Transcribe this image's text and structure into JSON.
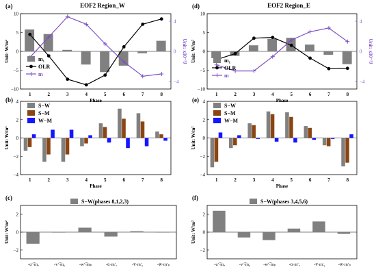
{
  "chart_data": [
    {
      "panel": "(a)",
      "type": "bar+line",
      "title": "EOF2 Region_W",
      "categories": [
        "1",
        "2",
        "3",
        "4",
        "5",
        "6",
        "7",
        "8"
      ],
      "xlabel": "Phase",
      "ylabel": "Unit: W/m²",
      "y2label": "Unit: x10⁻³J",
      "ylim": [
        -10,
        10
      ],
      "yticks": [
        10,
        5,
        0,
        -5,
        -10
      ],
      "y2lim": [
        -5,
        5
      ],
      "y2ticks": [
        4,
        0,
        -4
      ],
      "legend": [
        "m₁",
        "OLR",
        "m"
      ],
      "series": [
        {
          "name": "m₁",
          "kind": "bar",
          "color": "#808080",
          "values": [
            5.8,
            4.6,
            0.4,
            -3.5,
            -5.5,
            -3.8,
            -0.5,
            2.8
          ]
        },
        {
          "name": "OLR",
          "kind": "line",
          "color": "#000000",
          "marker": "circle",
          "values": [
            4.5,
            -1.2,
            -7.4,
            -8.9,
            -6.3,
            1.2,
            7.2,
            8.6
          ]
        },
        {
          "name": "m",
          "kind": "line",
          "color": "#7b4fc6",
          "marker": "plus",
          "axis": "right",
          "values": [
            -0.8,
            1.9,
            4.6,
            3.6,
            1.0,
            -1.4,
            -3.3,
            -3.0
          ]
        }
      ]
    },
    {
      "panel": "(d)",
      "type": "bar+line",
      "title": "EOF2 Region_E",
      "categories": [
        "1",
        "2",
        "3",
        "4",
        "5",
        "6",
        "7",
        "8"
      ],
      "xlabel": "Phase",
      "ylabel": "Unit: W/m²",
      "y2label": "Unit: x10⁻³J",
      "ylim": [
        -10,
        10
      ],
      "yticks": [
        10,
        5,
        0,
        -5,
        -10
      ],
      "y2lim": [
        -5,
        5
      ],
      "y2ticks": [
        4,
        0,
        -4
      ],
      "legend": [
        "m₁",
        "OLR",
        "m"
      ],
      "series": [
        {
          "name": "m₁",
          "kind": "bar",
          "color": "#808080",
          "values": [
            -1.8,
            -1.2,
            1.6,
            3.3,
            3.6,
            1.8,
            -0.9,
            -3.4
          ]
        },
        {
          "name": "OLR",
          "kind": "line",
          "color": "#000000",
          "marker": "circle",
          "values": [
            -2.2,
            -0.6,
            3.5,
            3.7,
            1.6,
            -1.8,
            -4.6,
            -4.5
          ]
        },
        {
          "name": "m",
          "kind": "line",
          "color": "#7b4fc6",
          "marker": "plus",
          "axis": "right",
          "values": [
            -1.8,
            -2.6,
            -2.6,
            -0.7,
            1.5,
            2.6,
            3.1,
            1.3
          ]
        }
      ]
    },
    {
      "panel": "(b)",
      "type": "bar",
      "categories": [
        "1",
        "2",
        "3",
        "4",
        "5",
        "6",
        "7",
        "8"
      ],
      "xlabel": "Phase",
      "ylabel": "Unit: W/m²",
      "ylim": [
        -4,
        4
      ],
      "yticks": [
        4,
        2,
        0,
        -2,
        -4
      ],
      "legend": [
        "S−W",
        "S−M",
        "W−M"
      ],
      "series": [
        {
          "name": "S−W",
          "color": "#808080",
          "values": [
            -1.4,
            -2.6,
            -2.6,
            -0.9,
            1.6,
            3.2,
            2.7,
            0.7
          ]
        },
        {
          "name": "S−M",
          "color": "#8b4513",
          "values": [
            -1.0,
            -1.8,
            -1.8,
            -0.6,
            1.2,
            2.1,
            1.8,
            0.4
          ]
        },
        {
          "name": "W−M",
          "color": "#1515ff",
          "values": [
            0.4,
            0.9,
            0.9,
            0.3,
            -0.5,
            -1.1,
            -0.9,
            -0.3
          ]
        }
      ]
    },
    {
      "panel": "(e)",
      "type": "bar",
      "categories": [
        "1",
        "2",
        "3",
        "4",
        "5",
        "6",
        "7",
        "8"
      ],
      "xlabel": "Phase",
      "ylabel": "Unit: W/m²",
      "ylim": [
        -4,
        4
      ],
      "yticks": [
        4,
        2,
        0,
        -2,
        -4
      ],
      "legend": [
        "S−W",
        "S−M",
        "W−M"
      ],
      "series": [
        {
          "name": "S−W",
          "color": "#808080",
          "values": [
            -3.2,
            -1.1,
            1.6,
            2.9,
            2.8,
            1.3,
            -0.8,
            -3.1
          ]
        },
        {
          "name": "S−M",
          "color": "#8b4513",
          "values": [
            -2.6,
            -0.8,
            1.4,
            2.6,
            2.3,
            1.1,
            -0.9,
            -2.7
          ]
        },
        {
          "name": "W−M",
          "color": "#1515ff",
          "values": [
            0.6,
            0.3,
            -0.1,
            -0.4,
            -0.5,
            -0.2,
            -0.1,
            0.4
          ]
        }
      ]
    },
    {
      "panel": "(c)",
      "type": "bar",
      "legend": [
        "S−W(phases 8,1,2,3)"
      ],
      "categories": [
        "-u′·̅mₓ",
        "-v′·̅mᵧ",
        "-w′·̅mₚ",
        "-ū·m′ₓ",
        "-v̅·m′ᵧ",
        "-w̅·m′ₚ"
      ],
      "ylabel": "Unit: W/m²",
      "ylim": [
        -3,
        3
      ],
      "yticks": [
        2,
        0,
        -2
      ],
      "series": [
        {
          "name": "S−W(phases 8,1,2,3)",
          "color": "#808080",
          "values": [
            -1.3,
            -0.05,
            0.5,
            -0.5,
            0.1,
            0.0
          ]
        }
      ]
    },
    {
      "panel": "(f)",
      "type": "bar",
      "legend": [
        "S−W(phases 3,4,5,6)"
      ],
      "categories": [
        "-u′·̅mₓ",
        "-v′·̅mᵧ",
        "-w′·̅mₚ",
        "-ū·m′ₓ",
        "-v̅·m′ᵧ",
        "-w̅·m′ₚ"
      ],
      "ylabel": "Unit: W/m²",
      "ylim": [
        -3,
        3
      ],
      "yticks": [
        2,
        0,
        -2
      ],
      "series": [
        {
          "name": "S−W(phases 3,4,5,6)",
          "color": "#808080",
          "values": [
            2.4,
            -0.6,
            -0.9,
            0.4,
            1.2,
            -0.2
          ]
        }
      ]
    }
  ]
}
